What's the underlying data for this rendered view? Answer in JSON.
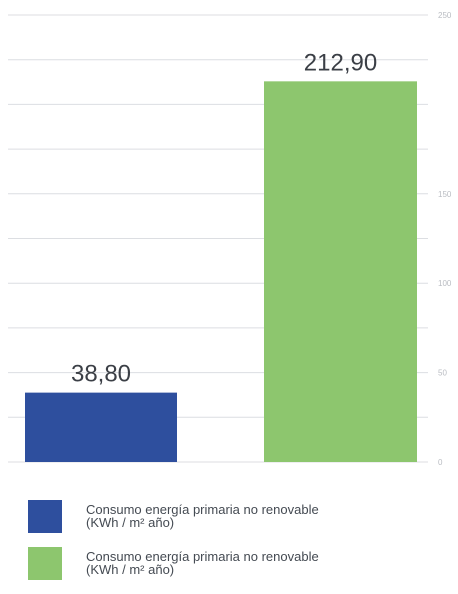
{
  "chart_data": {
    "type": "bar",
    "categories": [
      "",
      ""
    ],
    "values": [
      38.8,
      212.9
    ],
    "value_labels": [
      "38,80",
      "212,90"
    ],
    "colors": [
      "#2e4f9e",
      "#8dc66e"
    ],
    "yticks": [
      0,
      50,
      100,
      150,
      250
    ],
    "ylim": [
      0,
      250
    ],
    "grid": true,
    "axis_side": "right",
    "title": "",
    "xlabel": "",
    "ylabel": ""
  },
  "legend": [
    {
      "color": "#2e4f9e",
      "label": "Consumo energía primaria no renovable (KWh / m² año)"
    },
    {
      "color": "#8dc66e",
      "label": "Consumo energía primaria no renovable (KWh / m² año)"
    }
  ]
}
